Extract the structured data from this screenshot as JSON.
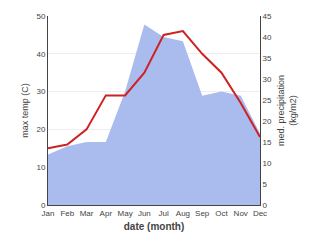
{
  "chart_data": {
    "type": "line",
    "categories": [
      "Jan",
      "Feb",
      "Mar",
      "Apr",
      "May",
      "Jun",
      "Jul",
      "Aug",
      "Sep",
      "Oct",
      "Nov",
      "Dec"
    ],
    "xlabel": "date (month)",
    "ylabel": "max temp (C)",
    "y2label": "med. precipitation\n(kg/m2)",
    "series": [
      {
        "type": "area",
        "color": "#aabbee",
        "axis": "y2",
        "values": [
          12,
          14,
          15,
          15,
          27,
          43,
          40,
          39,
          26,
          27,
          26,
          17
        ]
      },
      {
        "type": "line",
        "color": "#cc2222",
        "values": [
          15,
          16,
          20,
          29,
          29,
          35,
          45,
          46,
          40,
          35,
          27,
          18
        ]
      }
    ],
    "ylim": [
      0,
      50
    ],
    "yticks": [
      0,
      10,
      20,
      30,
      40,
      50
    ],
    "y2lim": [
      0,
      45
    ],
    "y2ticks": [
      0,
      5,
      10,
      15,
      20,
      25,
      30,
      35,
      40,
      45
    ],
    "grid": true
  }
}
